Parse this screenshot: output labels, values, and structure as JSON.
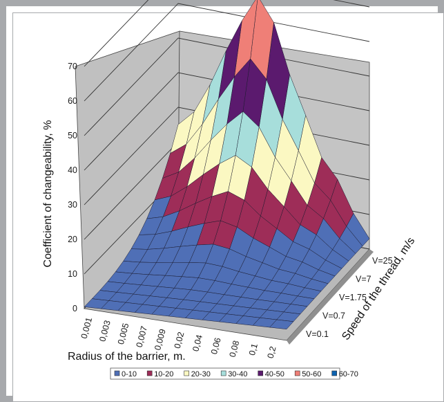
{
  "chart_data": {
    "type": "surface",
    "zlabel": "Coefficient of changeability, %",
    "xlabel": "Radius of the barrier, m.",
    "ylabel": "Speed of the thread, m/s",
    "zlim": [
      0,
      70
    ],
    "z_ticks": [
      "0",
      "10",
      "20",
      "30",
      "40",
      "50",
      "60",
      "70"
    ],
    "x_categories": [
      "0,001",
      "0,003",
      "0,005",
      "0,007",
      "0,009",
      "0,02",
      "0,04",
      "0,06",
      "0,08",
      "0,1",
      "0,2"
    ],
    "y_categories": [
      "V=0.1",
      "V=0.7",
      "V=1.75",
      "V=7",
      "V=25"
    ],
    "legend": {
      "placement": "bottom",
      "entries": [
        {
          "label": "0-10",
          "color": "#4f6fb6"
        },
        {
          "label": "10-20",
          "color": "#9e2d58"
        },
        {
          "label": "20-30",
          "color": "#fbf8c2"
        },
        {
          "label": "30-40",
          "color": "#a7dedb"
        },
        {
          "label": "40-50",
          "color": "#5b1a6e"
        },
        {
          "label": "50-60",
          "color": "#ef7f77"
        },
        {
          "label": "60-70",
          "color": "#0d63b0"
        }
      ]
    },
    "surface_front_edge_values": [
      2,
      3,
      4,
      5,
      6,
      7,
      8,
      9,
      10,
      11,
      12,
      13
    ],
    "surface_ridge_values": [
      25,
      30,
      40,
      52,
      62,
      70,
      50,
      40,
      25,
      20,
      10,
      3
    ]
  }
}
